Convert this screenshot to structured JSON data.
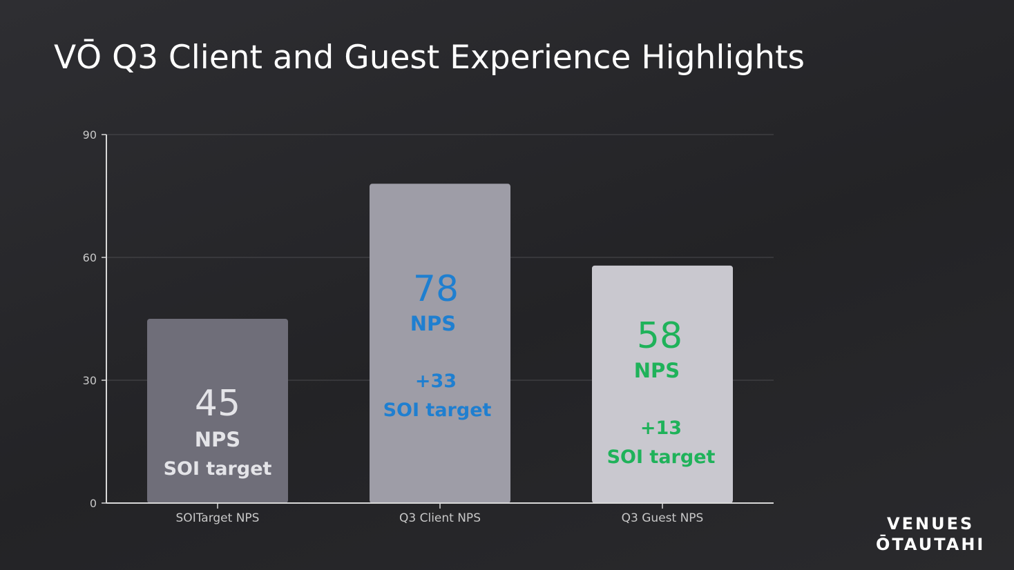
{
  "slide": {
    "title": "VŌ Q3 Client and Guest Experience Highlights",
    "logo_line1": "VENUES",
    "logo_line2": "ŌTAUTAHI"
  },
  "colors": {
    "background": "#262629",
    "axis": "#d9d9d9",
    "gridline": "#4a4a4e",
    "tick_text": "#c8c8c8",
    "bar_1": "#6f6e79",
    "bar_2": "#9e9da7",
    "bar_3": "#c9c8cf",
    "label_1": "#e4e4e8",
    "label_2": "#1f7fd0",
    "label_3": "#1fb25a"
  },
  "chart_data": {
    "type": "bar",
    "categories": [
      "SOITarget NPS",
      "Q3 Client NPS",
      "Q3 Guest NPS"
    ],
    "values": [
      45,
      78,
      58
    ],
    "ylim": [
      0,
      90
    ],
    "yticks": [
      0,
      30,
      60,
      90
    ],
    "grid": true,
    "xlabel": "",
    "ylabel": "",
    "annotations": [
      {
        "value": "45",
        "unit": "NPS",
        "note": "",
        "caption": "SOI target"
      },
      {
        "value": "78",
        "unit": "NPS",
        "note": "+33",
        "caption": "SOI target"
      },
      {
        "value": "58",
        "unit": "NPS",
        "note": "+13",
        "caption": "SOI target"
      }
    ]
  }
}
